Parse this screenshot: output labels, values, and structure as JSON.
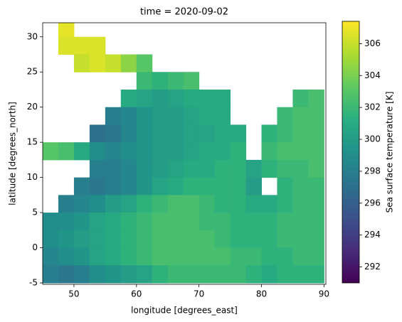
{
  "chart_data": {
    "type": "heatmap",
    "title": "time = 2020-09-02",
    "x_label": "longitude [degrees_east]",
    "y_label": "latitude [degrees_north]",
    "colorbar_label": "Sea surface temperature [K]",
    "colormap": "viridis",
    "xlim": [
      45,
      90.3
    ],
    "ylim": [
      -5.2,
      32
    ],
    "clim": [
      291,
      307.4
    ],
    "xticks": [
      50,
      60,
      70,
      80,
      90
    ],
    "yticks": [
      -5,
      0,
      5,
      10,
      15,
      20,
      25,
      30
    ],
    "cticks": [
      292,
      294,
      296,
      298,
      300,
      302,
      304,
      306
    ],
    "x_edges": [
      45,
      47.5,
      50,
      52.5,
      55,
      57.5,
      60,
      62.5,
      65,
      67.5,
      70,
      72.5,
      75,
      77.5,
      80,
      82.5,
      85,
      87.5,
      90
    ],
    "y_edges": [
      32.5,
      30,
      27.5,
      25,
      22.5,
      20,
      17.5,
      15,
      12.5,
      10,
      7.5,
      5,
      2.5,
      0,
      -2.5,
      -5
    ],
    "z": [
      [
        null,
        306.8,
        null,
        null,
        null,
        null,
        null,
        null,
        null,
        null,
        null,
        null,
        null,
        null,
        null,
        null,
        null,
        null
      ],
      [
        null,
        306.5,
        306.5,
        306.5,
        null,
        null,
        null,
        null,
        null,
        null,
        null,
        null,
        null,
        null,
        null,
        null,
        null,
        null
      ],
      [
        null,
        null,
        306,
        306.5,
        306,
        304.5,
        303,
        null,
        null,
        null,
        null,
        null,
        null,
        null,
        null,
        null,
        null,
        null
      ],
      [
        null,
        null,
        null,
        null,
        null,
        null,
        302,
        301.5,
        302,
        302.5,
        null,
        null,
        null,
        null,
        null,
        null,
        null,
        null
      ],
      [
        null,
        null,
        null,
        null,
        null,
        301,
        300.5,
        300,
        300.5,
        301,
        301,
        301,
        null,
        null,
        null,
        null,
        302,
        302.5
      ],
      [
        null,
        null,
        null,
        null,
        298,
        298.5,
        299.5,
        300,
        300,
        300.5,
        301,
        301,
        null,
        null,
        null,
        302,
        302.5,
        302.5
      ],
      [
        null,
        null,
        null,
        297,
        297.5,
        298.5,
        299.5,
        300,
        300,
        300.5,
        300.5,
        301,
        301,
        null,
        301.5,
        302,
        302.5,
        302.5
      ],
      [
        303,
        302.5,
        301,
        299,
        298.5,
        299,
        299.5,
        300,
        300,
        300.5,
        301,
        301,
        301.5,
        null,
        302,
        302.5,
        302.5,
        302.5
      ],
      [
        null,
        null,
        null,
        298,
        298,
        298.5,
        299.5,
        300,
        300.5,
        301,
        301,
        301.5,
        301.5,
        300.5,
        301.5,
        302,
        302,
        302.5
      ],
      [
        null,
        null,
        298,
        297.5,
        298,
        298.5,
        299.5,
        300.5,
        301,
        301.5,
        301.5,
        301.5,
        301.5,
        300,
        null,
        301.5,
        302,
        302
      ],
      [
        null,
        298,
        298.5,
        299,
        300,
        300.5,
        301.5,
        302,
        302.5,
        302.5,
        302,
        301.5,
        301.5,
        301,
        301,
        301.5,
        302,
        302
      ],
      [
        299,
        299,
        299.5,
        300.5,
        301,
        301.5,
        302,
        302.5,
        302.5,
        302.5,
        302,
        302,
        301.5,
        301.5,
        301.5,
        302,
        302,
        302
      ],
      [
        299,
        299.5,
        300,
        300.5,
        301,
        301.5,
        302,
        302.5,
        302.5,
        302.5,
        302.5,
        302,
        301.5,
        301.5,
        301.5,
        302,
        302,
        302
      ],
      [
        298.5,
        299,
        299.5,
        300.5,
        301,
        301.5,
        302,
        302.5,
        302.5,
        302.5,
        302.5,
        302.5,
        302,
        302,
        301.5,
        301.5,
        302,
        302
      ],
      [
        298,
        297.5,
        298,
        299,
        299.5,
        300,
        300.5,
        301.5,
        302,
        302,
        302,
        302,
        302,
        301.5,
        301,
        301.5,
        301.5,
        301.5
      ]
    ]
  }
}
